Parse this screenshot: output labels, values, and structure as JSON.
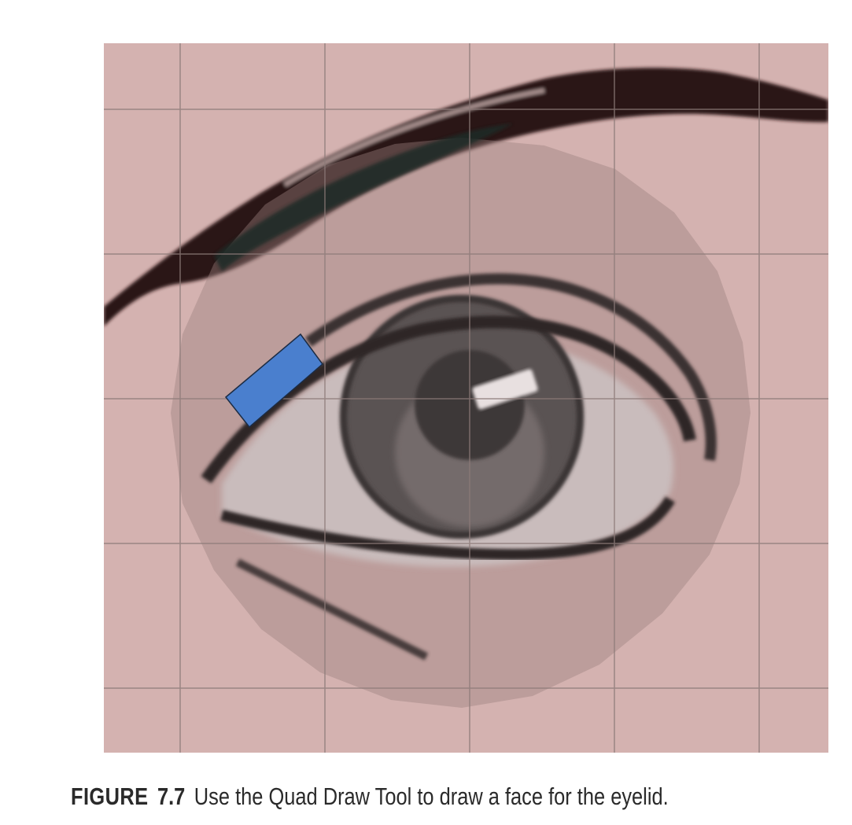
{
  "figure": {
    "label": "FIGURE",
    "number": "7.7",
    "caption": "Use the Quad Draw Tool to draw a face for the eyelid."
  },
  "image": {
    "subject": "eye-reference-image",
    "colors": {
      "background": "#d4b2b0",
      "circle_overlay": "#b99a98",
      "grid_line": "#8c7a78",
      "eyebrow": "#2b1414",
      "eye_line": "#3a3030",
      "iris": "#5a5252",
      "pupil": "#3e3838",
      "sclera": "#c9bcbc",
      "quad_face": "#4a7fce",
      "quad_outline": "#1c2c44"
    }
  }
}
